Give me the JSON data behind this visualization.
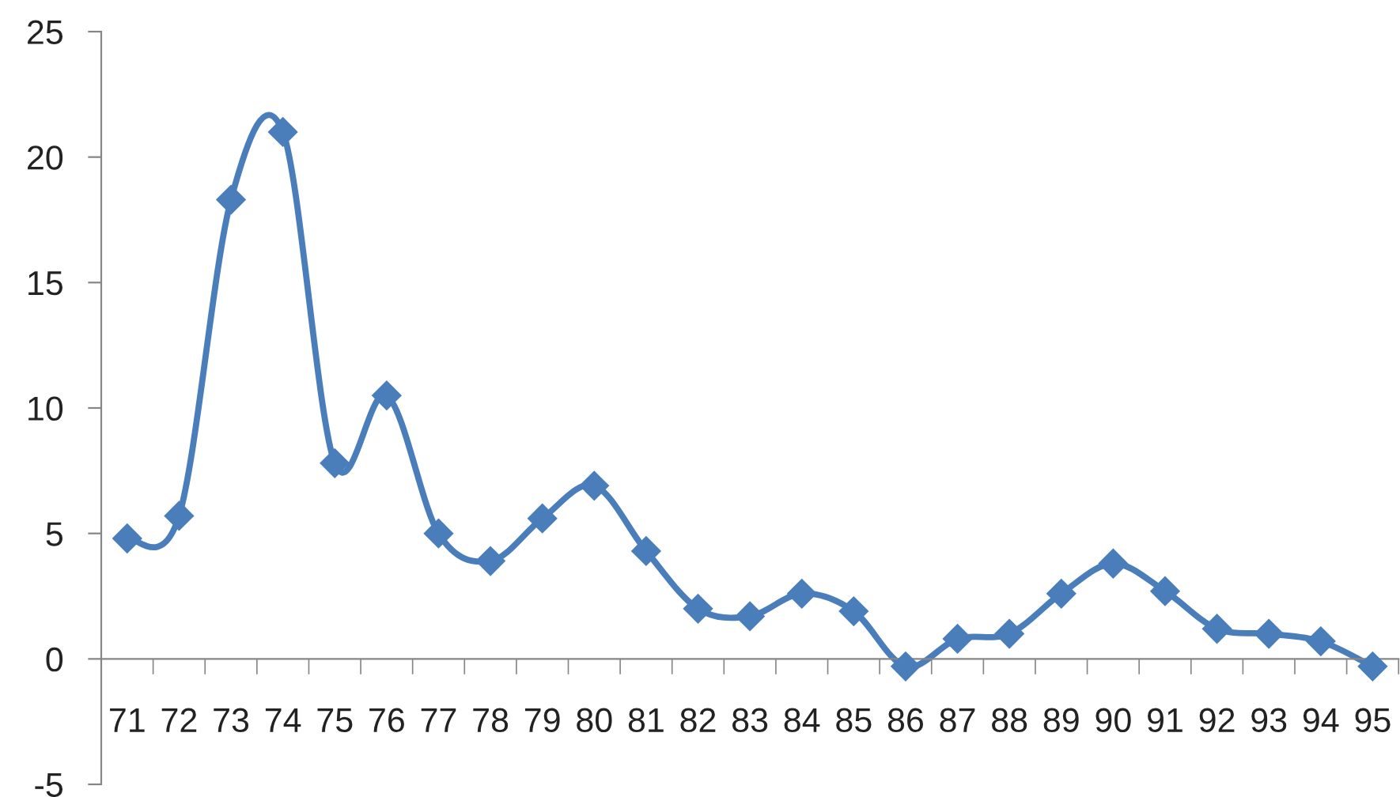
{
  "chart_data": {
    "type": "line",
    "categories": [
      "71",
      "72",
      "73",
      "74",
      "75",
      "76",
      "77",
      "78",
      "79",
      "80",
      "81",
      "82",
      "83",
      "84",
      "85",
      "86",
      "87",
      "88",
      "89",
      "90",
      "91",
      "92",
      "93",
      "94",
      "95"
    ],
    "series": [
      {
        "color": "#4a7ebb",
        "values": [
          4.8,
          5.7,
          18.3,
          21.0,
          7.8,
          10.5,
          5.0,
          3.9,
          5.6,
          6.9,
          4.3,
          2.0,
          1.7,
          2.6,
          1.9,
          -0.3,
          0.8,
          1.0,
          2.6,
          3.8,
          2.7,
          1.2,
          1.0,
          0.7,
          -0.3
        ]
      }
    ],
    "ylim": [
      -5,
      25
    ],
    "yticks": [
      -5,
      0,
      5,
      10,
      15,
      20,
      25
    ],
    "marker": "diamond",
    "line_style": "solid",
    "grid": false
  }
}
